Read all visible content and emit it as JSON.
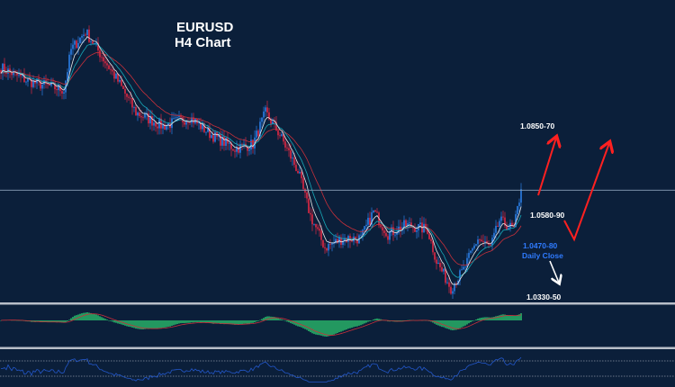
{
  "chart_data": {
    "type": "candlestick",
    "title": "EURUSD",
    "subtitle": "H4 Chart",
    "ylim": [
      1.0326,
      1.1244
    ],
    "grid": false,
    "colors": {
      "background": "#0b1f3a",
      "bull": "#2f8cff",
      "bear": "#ff2a45",
      "ma_fast": "#e8e8e8",
      "ma_mid": "#18a9b8",
      "ma_slow": "#c8303a",
      "macd_hist": "#2ecc71",
      "macd_signal": "#c8303a",
      "rsi": "#2357c9",
      "level_line": "#8aa0b8",
      "arrow_up": "#ff2020",
      "arrow_down": "#ffffff"
    },
    "price_path": [
      [
        0,
        1.1038
      ],
      [
        15,
        1.0997
      ],
      [
        35,
        1.097
      ],
      [
        39,
        1.1093
      ],
      [
        47,
        1.1148
      ],
      [
        52,
        1.1107
      ],
      [
        65,
        1.0997
      ],
      [
        75,
        1.0901
      ],
      [
        90,
        1.086
      ],
      [
        105,
        1.0887
      ],
      [
        117,
        1.0833
      ],
      [
        130,
        1.0792
      ],
      [
        140,
        1.0805
      ],
      [
        147,
        1.0901
      ],
      [
        155,
        1.0833
      ],
      [
        165,
        1.0723
      ],
      [
        172,
        1.0586
      ],
      [
        180,
        1.049
      ],
      [
        190,
        1.0518
      ],
      [
        200,
        1.0518
      ],
      [
        207,
        1.06
      ],
      [
        215,
        1.0531
      ],
      [
        225,
        1.0559
      ],
      [
        237,
        1.0545
      ],
      [
        242,
        1.0449
      ],
      [
        250,
        1.0367
      ],
      [
        257,
        1.0422
      ],
      [
        265,
        1.0518
      ],
      [
        272,
        1.049
      ],
      [
        277,
        1.0572
      ],
      [
        285,
        1.0545
      ],
      [
        289,
        1.0668
      ]
    ],
    "horizontal_level": 1.0665,
    "annotations": {
      "target_high": "1.0850-70",
      "resistance": "1.0580-90",
      "daily_close_level": "1.0470-80",
      "daily_close_label": "Daily Close",
      "target_low": "1.0330-50"
    },
    "indicators": [
      "MACD",
      "RSI"
    ]
  }
}
